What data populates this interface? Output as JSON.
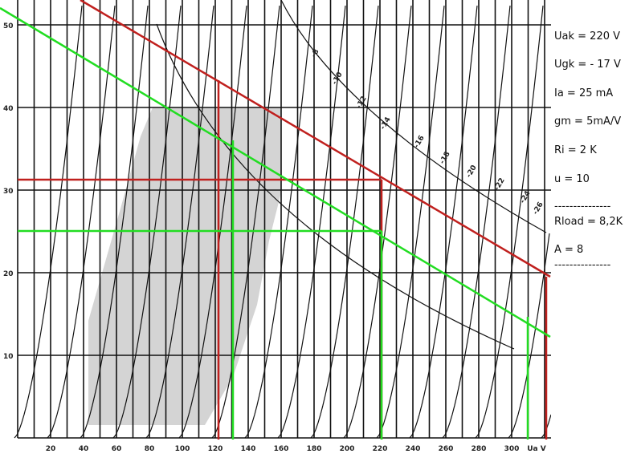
{
  "plot": {
    "x_ticks": [
      "20",
      "40",
      "60",
      "80",
      "100",
      "120",
      "140",
      "160",
      "180",
      "200",
      "220",
      "240",
      "260",
      "280",
      "300"
    ],
    "x_axis_label": "Ua V",
    "y_ticks": [
      "50",
      "40",
      "30",
      "20",
      "10"
    ],
    "curve_labels": [
      "-8",
      "-10",
      "-12",
      "-14",
      "-16",
      "-18",
      "-20",
      "-22",
      "-24",
      "-26"
    ]
  },
  "notes": [
    "Uak = 220 V",
    "Ugk = - 17 V",
    "Ia = 25 mA",
    "gm = 5mA/V",
    "Ri = 2 K",
    "u = 10",
    "---------------",
    "Rload = 8,2K",
    "A = 8",
    "---------------"
  ]
}
